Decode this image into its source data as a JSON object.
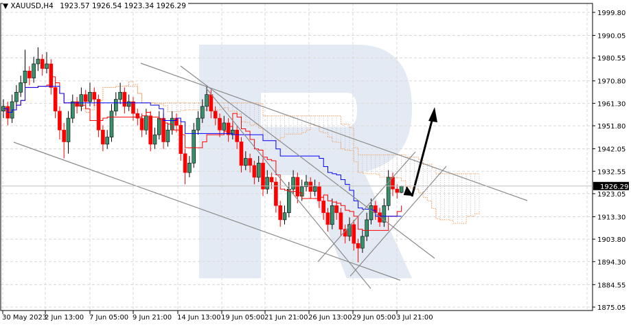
{
  "header": {
    "symbol": "XAUUSD,H4",
    "ohlc": "1923.57 1926.54 1923.34 1926.29"
  },
  "chart_data": {
    "type": "candlestick",
    "symbol": "XAUUSD",
    "timeframe": "H4",
    "current_price": "1926.29",
    "ylim": [
      1875.05,
      1999.8
    ],
    "y_ticks": [
      "1999.80",
      "1990.05",
      "1980.55",
      "1970.80",
      "1961.30",
      "1951.80",
      "1942.05",
      "1932.55",
      "1923.05",
      "1913.30",
      "1903.80",
      "1894.30",
      "1884.55",
      "1875.05"
    ],
    "x_ticks": [
      "30 May 2023",
      "2 Jun 13:00",
      "7 Jun 05:00",
      "9 Jun 21:00",
      "14 Jun 13:00",
      "19 Jun 05:00",
      "21 Jun 21:00",
      "26 Jun 13:00",
      "29 Jun 05:00",
      "3 Jul 21:00"
    ],
    "indicators": [
      "Ichimoku Tenkan-sen (red)",
      "Ichimoku Kijun-sen (blue)",
      "Ichimoku cloud (orange dotted)"
    ],
    "grid": true,
    "colors": {
      "bull": "#3a8f6c",
      "bear": "#ff0000",
      "tenkan": "#ff0000",
      "kijun": "#0000ff",
      "cloud": "#f0a060",
      "watermark": "#e4eaf3"
    },
    "candles": [
      [
        1958,
        1963,
        1955,
        1960
      ],
      [
        1960,
        1962,
        1952,
        1955
      ],
      [
        1955,
        1965,
        1953,
        1962
      ],
      [
        1962,
        1969,
        1960,
        1966
      ],
      [
        1966,
        1973,
        1964,
        1970
      ],
      [
        1970,
        1984,
        1968,
        1975
      ],
      [
        1975,
        1977,
        1969,
        1972
      ],
      [
        1972,
        1981,
        1970,
        1978
      ],
      [
        1978,
        1985,
        1975,
        1980
      ],
      [
        1980,
        1982,
        1973,
        1976
      ],
      [
        1976,
        1983,
        1974,
        1978
      ],
      [
        1978,
        1980,
        1965,
        1968
      ],
      [
        1968,
        1970,
        1955,
        1958
      ],
      [
        1958,
        1960,
        1946,
        1950
      ],
      [
        1950,
        1953,
        1938,
        1945
      ],
      [
        1945,
        1958,
        1940,
        1955
      ],
      [
        1955,
        1965,
        1953,
        1962
      ],
      [
        1962,
        1964,
        1957,
        1960
      ],
      [
        1960,
        1968,
        1958,
        1965
      ],
      [
        1965,
        1967,
        1959,
        1962
      ],
      [
        1962,
        1970,
        1960,
        1966
      ],
      [
        1966,
        1968,
        1960,
        1963
      ],
      [
        1963,
        1965,
        1947,
        1950
      ],
      [
        1950,
        1952,
        1941,
        1944
      ],
      [
        1944,
        1950,
        1942,
        1947
      ],
      [
        1947,
        1961,
        1945,
        1958
      ],
      [
        1958,
        1966,
        1956,
        1963
      ],
      [
        1963,
        1970,
        1961,
        1966
      ],
      [
        1966,
        1968,
        1957,
        1960
      ],
      [
        1960,
        1965,
        1958,
        1962
      ],
      [
        1962,
        1964,
        1954,
        1957
      ],
      [
        1957,
        1959,
        1952,
        1955
      ],
      [
        1955,
        1957,
        1947,
        1950
      ],
      [
        1950,
        1959,
        1948,
        1956
      ],
      [
        1956,
        1958,
        1941,
        1944
      ],
      [
        1944,
        1951,
        1942,
        1948
      ],
      [
        1948,
        1958,
        1946,
        1955
      ],
      [
        1955,
        1957,
        1942,
        1945
      ],
      [
        1945,
        1953,
        1943,
        1950
      ],
      [
        1950,
        1958,
        1948,
        1955
      ],
      [
        1955,
        1957,
        1949,
        1952
      ],
      [
        1952,
        1954,
        1937,
        1940
      ],
      [
        1940,
        1942,
        1927,
        1932
      ],
      [
        1932,
        1939,
        1930,
        1936
      ],
      [
        1936,
        1953,
        1934,
        1950
      ],
      [
        1950,
        1958,
        1948,
        1955
      ],
      [
        1955,
        1963,
        1953,
        1960
      ],
      [
        1960,
        1969,
        1958,
        1965
      ],
      [
        1965,
        1967,
        1955,
        1958
      ],
      [
        1958,
        1960,
        1952,
        1955
      ],
      [
        1955,
        1957,
        1947,
        1950
      ],
      [
        1950,
        1956,
        1948,
        1953
      ],
      [
        1953,
        1955,
        1945,
        1948
      ],
      [
        1948,
        1953,
        1946,
        1950
      ],
      [
        1950,
        1952,
        1942,
        1945
      ],
      [
        1945,
        1947,
        1932,
        1935
      ],
      [
        1935,
        1941,
        1933,
        1938
      ],
      [
        1938,
        1940,
        1932,
        1935
      ],
      [
        1935,
        1937,
        1927,
        1930
      ],
      [
        1930,
        1939,
        1928,
        1936
      ],
      [
        1936,
        1938,
        1922,
        1925
      ],
      [
        1925,
        1933,
        1923,
        1930
      ],
      [
        1930,
        1932,
        1925,
        1928
      ],
      [
        1928,
        1930,
        1915,
        1918
      ],
      [
        1918,
        1920,
        1909,
        1912
      ],
      [
        1912,
        1918,
        1910,
        1915
      ],
      [
        1915,
        1928,
        1913,
        1925
      ],
      [
        1925,
        1933,
        1923,
        1930
      ],
      [
        1930,
        1932,
        1919,
        1922
      ],
      [
        1922,
        1929,
        1920,
        1926
      ],
      [
        1926,
        1931,
        1924,
        1928
      ],
      [
        1928,
        1930,
        1921,
        1924
      ],
      [
        1924,
        1929,
        1922,
        1926
      ],
      [
        1926,
        1928,
        1917,
        1920
      ],
      [
        1920,
        1922,
        1912,
        1915
      ],
      [
        1915,
        1917,
        1907,
        1910
      ],
      [
        1910,
        1921,
        1908,
        1918
      ],
      [
        1918,
        1920,
        1912,
        1915
      ],
      [
        1915,
        1917,
        1905,
        1908
      ],
      [
        1908,
        1910,
        1902,
        1905
      ],
      [
        1905,
        1913,
        1903,
        1910
      ],
      [
        1910,
        1912,
        1899,
        1902
      ],
      [
        1902,
        1904,
        1894,
        1900
      ],
      [
        1900,
        1908,
        1898,
        1905
      ],
      [
        1905,
        1915,
        1903,
        1912
      ],
      [
        1912,
        1921,
        1910,
        1918
      ],
      [
        1918,
        1920,
        1912,
        1915
      ],
      [
        1915,
        1917,
        1909,
        1911
      ],
      [
        1911,
        1921,
        1909,
        1918
      ],
      [
        1918,
        1933,
        1916,
        1930
      ],
      [
        1930,
        1932,
        1922,
        1925
      ],
      [
        1925,
        1927,
        1921,
        1923.57
      ],
      [
        1923.57,
        1926.54,
        1923.34,
        1926.29
      ]
    ]
  }
}
